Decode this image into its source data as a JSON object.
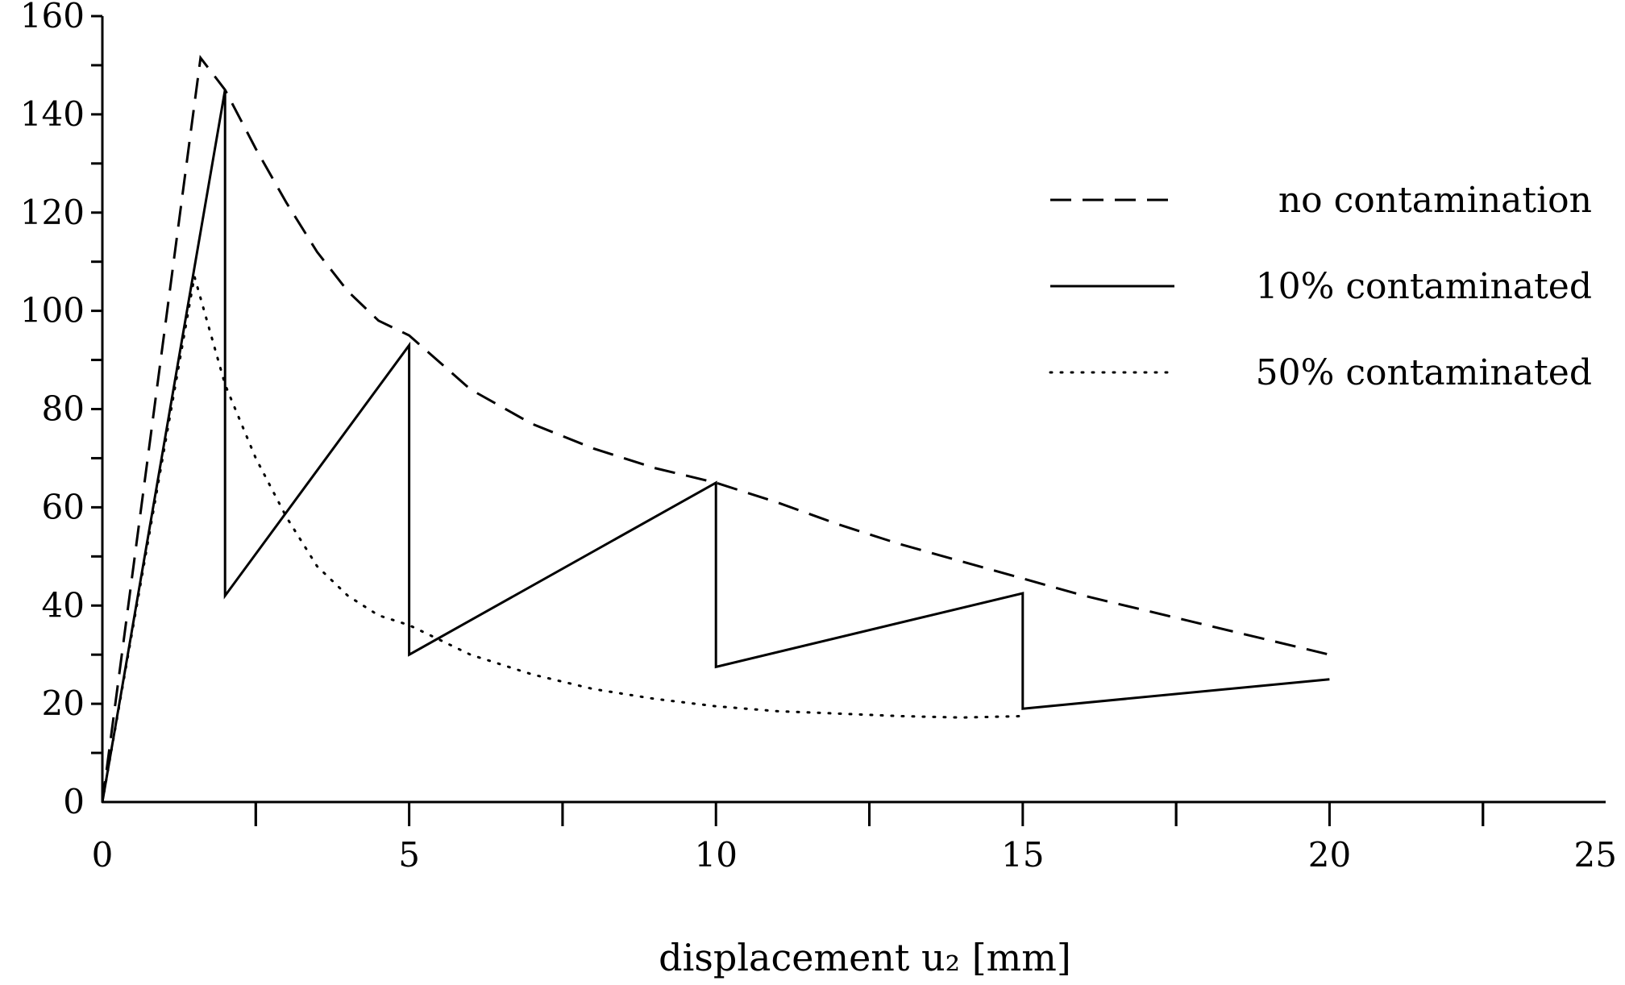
{
  "chart_data": {
    "type": "line",
    "title": "",
    "xlabel": "displacement u₂ [mm]",
    "ylabel": "",
    "xlim": [
      0,
      24.5
    ],
    "ylim": [
      0,
      160
    ],
    "x_ticks": [
      "0",
      "5",
      "10",
      "15",
      "20",
      "25"
    ],
    "y_ticks": [
      "0",
      "20",
      "40",
      "60",
      "80",
      "100",
      "120",
      "140",
      "160"
    ],
    "grid": false,
    "legend_position": "top-right",
    "series": [
      {
        "name": "no contamination",
        "style": "dashed",
        "points": [
          [
            0,
            0
          ],
          [
            1.6,
            151.5
          ],
          [
            2.0,
            145
          ],
          [
            2.5,
            133
          ],
          [
            3.0,
            122
          ],
          [
            3.5,
            112
          ],
          [
            4.0,
            104
          ],
          [
            4.5,
            98
          ],
          [
            5.0,
            95
          ],
          [
            6.0,
            84
          ],
          [
            7.0,
            77
          ],
          [
            8.0,
            72
          ],
          [
            9.0,
            68
          ],
          [
            10.0,
            65
          ],
          [
            11.0,
            61
          ],
          [
            12.0,
            56.5
          ],
          [
            13.0,
            52.5
          ],
          [
            14.0,
            49
          ],
          [
            15.0,
            45.5
          ],
          [
            16.0,
            42
          ],
          [
            17.0,
            39
          ],
          [
            18.0,
            36
          ],
          [
            19.0,
            33
          ],
          [
            19.5,
            31.5
          ],
          [
            20.0,
            30
          ]
        ]
      },
      {
        "name": "10% contaminated",
        "style": "solid",
        "points": [
          [
            0,
            0
          ],
          [
            2.0,
            145
          ],
          [
            2.0,
            42
          ],
          [
            5.0,
            93
          ],
          [
            5.0,
            30
          ],
          [
            10.0,
            65
          ],
          [
            10.0,
            27.5
          ],
          [
            15.0,
            42.5
          ],
          [
            15.0,
            19
          ],
          [
            20.0,
            25
          ]
        ]
      },
      {
        "name": "50% contaminated",
        "style": "dotted",
        "points": [
          [
            0,
            0
          ],
          [
            1.5,
            107
          ],
          [
            2.0,
            85
          ],
          [
            2.5,
            70
          ],
          [
            3.0,
            58
          ],
          [
            3.5,
            48
          ],
          [
            4.0,
            42
          ],
          [
            4.5,
            38
          ],
          [
            5.0,
            36
          ],
          [
            6.0,
            30
          ],
          [
            7.0,
            26
          ],
          [
            8.0,
            23
          ],
          [
            9.0,
            21
          ],
          [
            10.0,
            19.5
          ],
          [
            11.0,
            18.5
          ],
          [
            12.0,
            18
          ],
          [
            13.0,
            17.5
          ],
          [
            14.0,
            17.2
          ],
          [
            15.0,
            17.5
          ]
        ]
      }
    ]
  }
}
